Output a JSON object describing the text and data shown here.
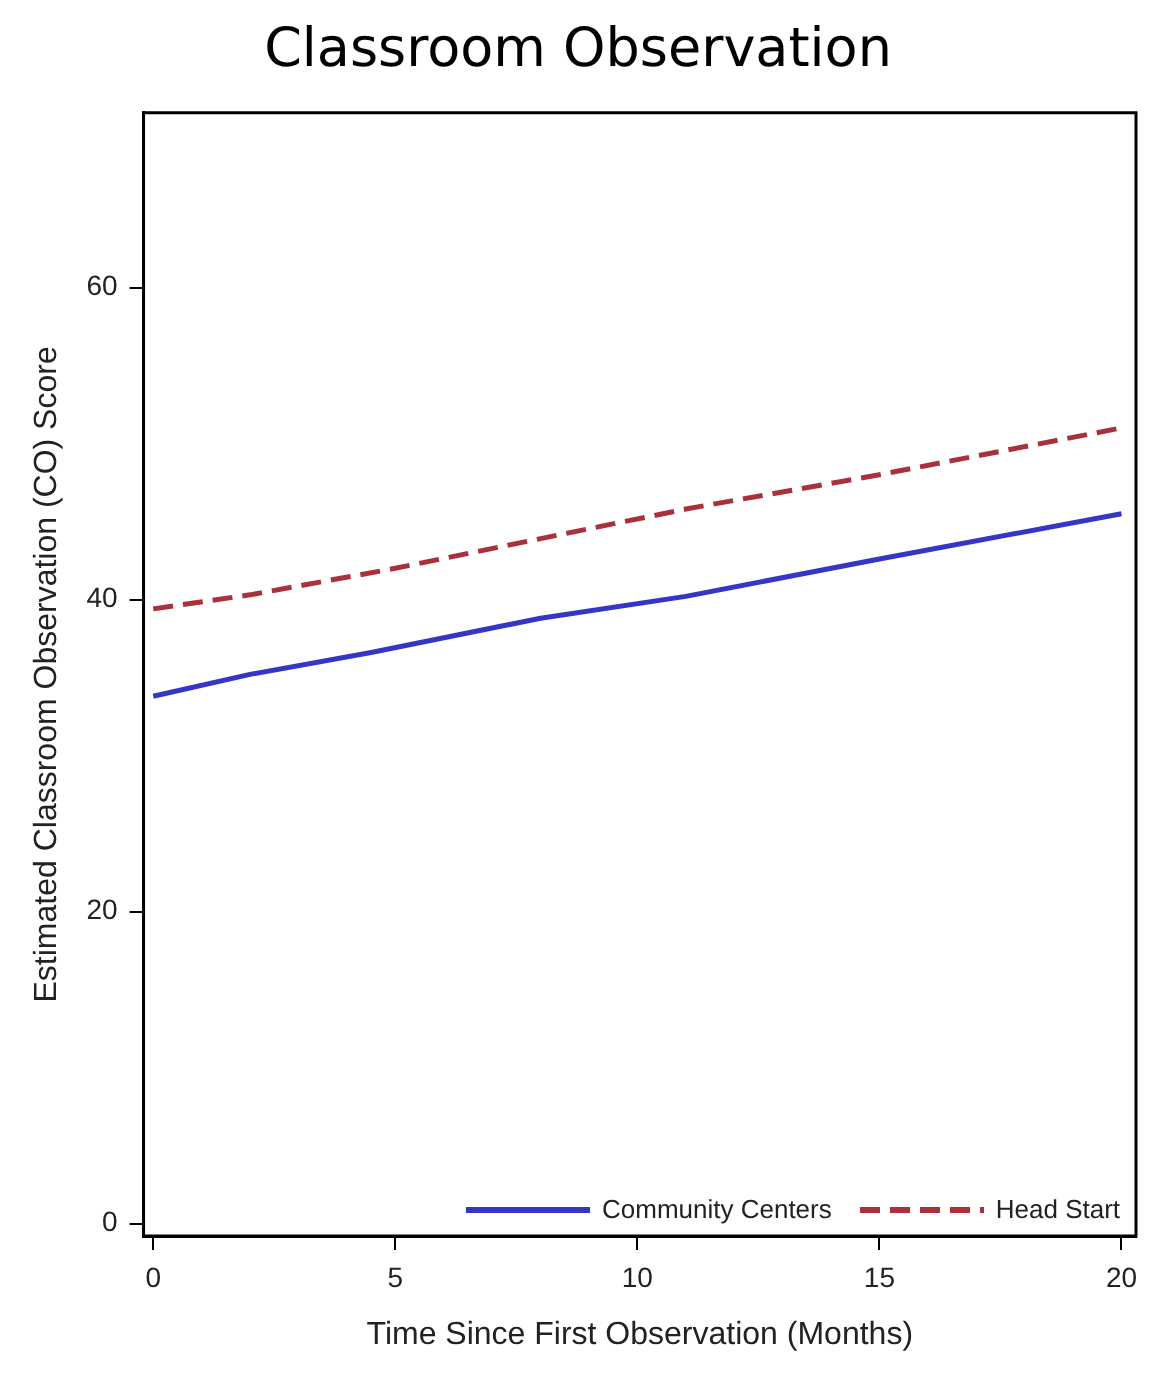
{
  "chart_data": {
    "type": "line",
    "title": "Classroom Observation",
    "xlabel": "Time Since First Observation (Months)",
    "ylabel": "Estimated Classroom Observation (CO) Score",
    "xlim": [
      -0.2,
      20.3
    ],
    "xticks": [
      0,
      5,
      10,
      15,
      20
    ],
    "ylim": [
      -0.8,
      71.2
    ],
    "yticks": [
      0,
      20,
      40,
      60
    ],
    "grid": false,
    "legend": "bottom right",
    "marker": "none",
    "series": [
      {
        "name": "Community Centers",
        "color": "#3535c8",
        "line_style": "solid",
        "x": [
          0,
          2,
          4.5,
          8,
          11,
          15,
          20
        ],
        "values": [
          33.8,
          35.2,
          36.6,
          38.8,
          40.2,
          42.6,
          45.5
        ]
      },
      {
        "name": "Head Start",
        "color": "#a8313b",
        "line_style": "dashed",
        "x": [
          0,
          2,
          5,
          11,
          15,
          20
        ],
        "values": [
          39.4,
          40.3,
          42.0,
          45.8,
          48.0,
          51.0
        ]
      }
    ]
  }
}
